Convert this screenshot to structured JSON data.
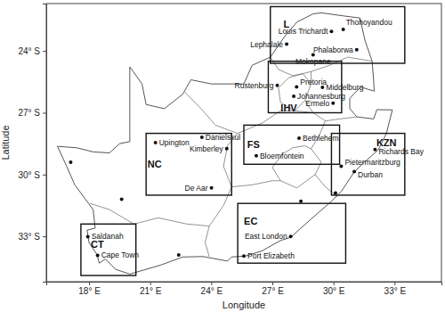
{
  "chart_data": {
    "type": "map",
    "x_label": "Longitude",
    "y_label": "Latitude",
    "xlim": [
      15.9,
      35.3
    ],
    "ylim": [
      -35.2,
      -21.7
    ],
    "xticks": [
      {
        "value": 18,
        "label": "18° E"
      },
      {
        "value": 21,
        "label": "21° E"
      },
      {
        "value": 24,
        "label": "24° E"
      },
      {
        "value": 27,
        "label": "27° E"
      },
      {
        "value": 30,
        "label": "30° E"
      },
      {
        "value": 33,
        "label": "33° E"
      }
    ],
    "yticks": [
      {
        "value": -33,
        "label": "33° S"
      },
      {
        "value": -30,
        "label": "30° S"
      },
      {
        "value": -27,
        "label": "27° S"
      },
      {
        "value": -24,
        "label": "24° S"
      }
    ],
    "outline": [
      [
        16.45,
        -28.63
      ],
      [
        17.4,
        -28.7
      ],
      [
        18.2,
        -28.9
      ],
      [
        19.0,
        -28.95
      ],
      [
        19.5,
        -28.5
      ],
      [
        20.0,
        -28.4
      ],
      [
        20.0,
        -24.77
      ],
      [
        20.6,
        -25.6
      ],
      [
        20.8,
        -26.6
      ],
      [
        21.7,
        -26.8
      ],
      [
        22.6,
        -26.1
      ],
      [
        23.0,
        -25.4
      ],
      [
        24.0,
        -25.6
      ],
      [
        25.6,
        -25.6
      ],
      [
        26.0,
        -24.7
      ],
      [
        26.9,
        -24.3
      ],
      [
        27.6,
        -23.3
      ],
      [
        28.2,
        -22.6
      ],
      [
        29.0,
        -22.2
      ],
      [
        29.4,
        -22.15
      ],
      [
        30.5,
        -22.3
      ],
      [
        31.3,
        -22.4
      ],
      [
        31.55,
        -23.5
      ],
      [
        31.9,
        -24.5
      ],
      [
        31.97,
        -25.43
      ],
      [
        32.0,
        -25.95
      ],
      [
        31.33,
        -25.75
      ],
      [
        30.8,
        -26.3
      ],
      [
        30.8,
        -26.8
      ],
      [
        31.15,
        -27.2
      ],
      [
        31.97,
        -27.3
      ],
      [
        32.13,
        -26.85
      ],
      [
        32.89,
        -26.86
      ],
      [
        32.6,
        -28.0
      ],
      [
        32.2,
        -28.8
      ],
      [
        31.4,
        -29.5
      ],
      [
        31.0,
        -29.9
      ],
      [
        30.4,
        -30.8
      ],
      [
        29.9,
        -31.3
      ],
      [
        29.2,
        -31.9
      ],
      [
        28.4,
        -32.6
      ],
      [
        27.9,
        -33.05
      ],
      [
        27.4,
        -33.2
      ],
      [
        26.5,
        -33.7
      ],
      [
        25.7,
        -33.95
      ],
      [
        25.0,
        -34.0
      ],
      [
        24.8,
        -34.2
      ],
      [
        23.6,
        -33.98
      ],
      [
        22.6,
        -34.0
      ],
      [
        21.5,
        -34.4
      ],
      [
        20.0,
        -34.83
      ],
      [
        19.3,
        -34.6
      ],
      [
        18.8,
        -34.1
      ],
      [
        18.5,
        -34.3
      ],
      [
        18.4,
        -33.9
      ],
      [
        18.0,
        -33.3
      ],
      [
        17.9,
        -32.7
      ],
      [
        18.3,
        -32.6
      ],
      [
        18.2,
        -31.7
      ],
      [
        17.3,
        -30.5
      ],
      [
        16.9,
        -29.6
      ]
    ],
    "boundaries": [
      [
        [
          27.0,
          -29.65
        ],
        [
          27.5,
          -29.0
        ],
        [
          28.0,
          -28.7
        ],
        [
          28.6,
          -28.6
        ],
        [
          28.9,
          -28.75
        ],
        [
          29.4,
          -29.4
        ],
        [
          29.1,
          -30.0
        ],
        [
          28.2,
          -30.65
        ],
        [
          27.4,
          -30.3
        ],
        [
          27.0,
          -29.65
        ]
      ],
      [
        [
          18.05,
          -31.4
        ],
        [
          19.0,
          -31.7
        ],
        [
          20.2,
          -32.4
        ],
        [
          21.4,
          -32.1
        ],
        [
          22.8,
          -32.4
        ],
        [
          23.9,
          -32.5
        ]
      ],
      [
        [
          23.9,
          -32.5
        ],
        [
          23.7,
          -33.3
        ],
        [
          23.9,
          -33.98
        ]
      ],
      [
        [
          23.9,
          -32.5
        ],
        [
          24.6,
          -31.5
        ],
        [
          25.0,
          -30.6
        ],
        [
          26.0,
          -30.5
        ],
        [
          27.0,
          -30.3
        ],
        [
          27.4,
          -30.3
        ]
      ],
      [
        [
          25.0,
          -30.6
        ],
        [
          24.6,
          -29.6
        ],
        [
          24.8,
          -28.6
        ],
        [
          25.3,
          -28.0
        ]
      ],
      [
        [
          22.7,
          -26.0
        ],
        [
          23.5,
          -26.8
        ],
        [
          24.2,
          -27.6
        ],
        [
          25.3,
          -28.0
        ]
      ],
      [
        [
          25.3,
          -28.0
        ],
        [
          26.5,
          -27.5
        ],
        [
          27.4,
          -26.9
        ],
        [
          28.1,
          -26.9
        ],
        [
          29.0,
          -27.0
        ],
        [
          29.6,
          -27.4
        ],
        [
          29.3,
          -28.1
        ],
        [
          28.9,
          -28.75
        ]
      ],
      [
        [
          29.1,
          -30.0
        ],
        [
          29.6,
          -30.6
        ],
        [
          30.2,
          -31.08
        ]
      ],
      [
        [
          29.6,
          -27.4
        ],
        [
          30.3,
          -27.3
        ],
        [
          31.15,
          -27.2
        ]
      ],
      [
        [
          27.3,
          -25.8
        ],
        [
          27.8,
          -25.3
        ],
        [
          28.5,
          -25.1
        ],
        [
          28.9,
          -25.6
        ],
        [
          28.6,
          -26.4
        ],
        [
          28.1,
          -26.9
        ],
        [
          27.4,
          -26.5
        ],
        [
          27.3,
          -25.8
        ]
      ],
      [
        [
          26.9,
          -24.3
        ],
        [
          27.3,
          -24.9
        ],
        [
          28.0,
          -25.2
        ],
        [
          28.5,
          -25.1
        ],
        [
          28.9,
          -25.0
        ],
        [
          29.8,
          -24.7
        ],
        [
          30.7,
          -24.3
        ],
        [
          31.9,
          -24.5
        ]
      ],
      [
        [
          28.9,
          -25.0
        ],
        [
          28.9,
          -25.6
        ]
      ],
      [
        [
          28.6,
          -26.4
        ],
        [
          29.0,
          -27.0
        ]
      ]
    ],
    "regions": [
      {
        "name": "L",
        "lon": [
          26.9,
          33.5
        ],
        "lat": [
          -24.6,
          -21.85
        ]
      },
      {
        "name": "IHV",
        "lon": [
          26.8,
          30.4
        ],
        "lat": [
          -27.0,
          -24.5
        ]
      },
      {
        "name": "FS",
        "lon": [
          25.6,
          30.3
        ],
        "lat": [
          -29.5,
          -27.6
        ]
      },
      {
        "name": "KZN",
        "lon": [
          29.9,
          33.5
        ],
        "lat": [
          -31.0,
          -28.0
        ]
      },
      {
        "name": "NC",
        "lon": [
          20.8,
          25.0
        ],
        "lat": [
          -31.0,
          -28.0
        ]
      },
      {
        "name": "EC",
        "lon": [
          25.3,
          30.6
        ],
        "lat": [
          -34.3,
          -31.4
        ]
      },
      {
        "name": "CT",
        "lon": [
          17.6,
          20.3
        ],
        "lat": [
          -34.9,
          -32.4
        ]
      }
    ],
    "cities": [
      {
        "name": "Louis Trichardt",
        "lon": 29.9,
        "lat": -23.05
      },
      {
        "name": "Thohoyandou",
        "lon": 30.48,
        "lat": -22.95
      },
      {
        "name": "Lephalale",
        "lon": 27.7,
        "lat": -23.67
      },
      {
        "name": "Phalaborwa",
        "lon": 31.14,
        "lat": -23.94
      },
      {
        "name": "Mokopane",
        "lon": 29.0,
        "lat": -24.19
      },
      {
        "name": "Rustenburg",
        "lon": 27.24,
        "lat": -25.67
      },
      {
        "name": "Pretoria",
        "lon": 28.19,
        "lat": -25.75
      },
      {
        "name": "Middelburg",
        "lon": 29.46,
        "lat": -25.77
      },
      {
        "name": "Johannesburg",
        "lon": 28.05,
        "lat": -26.2
      },
      {
        "name": "Ermelo",
        "lon": 29.98,
        "lat": -26.53
      },
      {
        "name": "Bethlehem",
        "lon": 28.31,
        "lat": -28.23
      },
      {
        "name": "Bloemfontein",
        "lon": 26.21,
        "lat": -29.09
      },
      {
        "name": "Danielskul",
        "lon": 23.54,
        "lat": -28.19
      },
      {
        "name": "Upington",
        "lon": 21.26,
        "lat": -28.45
      },
      {
        "name": "Kimberley",
        "lon": 24.76,
        "lat": -28.74
      },
      {
        "name": "De Aar",
        "lon": 24.01,
        "lat": -30.65
      },
      {
        "name": "Pietermaritzburg",
        "lon": 30.38,
        "lat": -29.6
      },
      {
        "name": "Durban",
        "lon": 31.02,
        "lat": -29.86
      },
      {
        "name": "Richards Bay",
        "lon": 32.04,
        "lat": -28.78
      },
      {
        "name": "East London",
        "lon": 27.9,
        "lat": -33.0
      },
      {
        "name": "Port Elizabeth",
        "lon": 25.6,
        "lat": -33.96
      },
      {
        "name": "Saldanah",
        "lon": 17.94,
        "lat": -33.01
      },
      {
        "name": "Cape Town",
        "lon": 18.42,
        "lat": -33.92
      }
    ],
    "points": [
      {
        "lon": 17.1,
        "lat": -29.4
      },
      {
        "lon": 19.6,
        "lat": -31.2
      },
      {
        "lon": 22.4,
        "lat": -33.9
      },
      {
        "lon": 28.4,
        "lat": -31.3
      },
      {
        "lon": 30.1,
        "lat": -30.9
      }
    ]
  }
}
